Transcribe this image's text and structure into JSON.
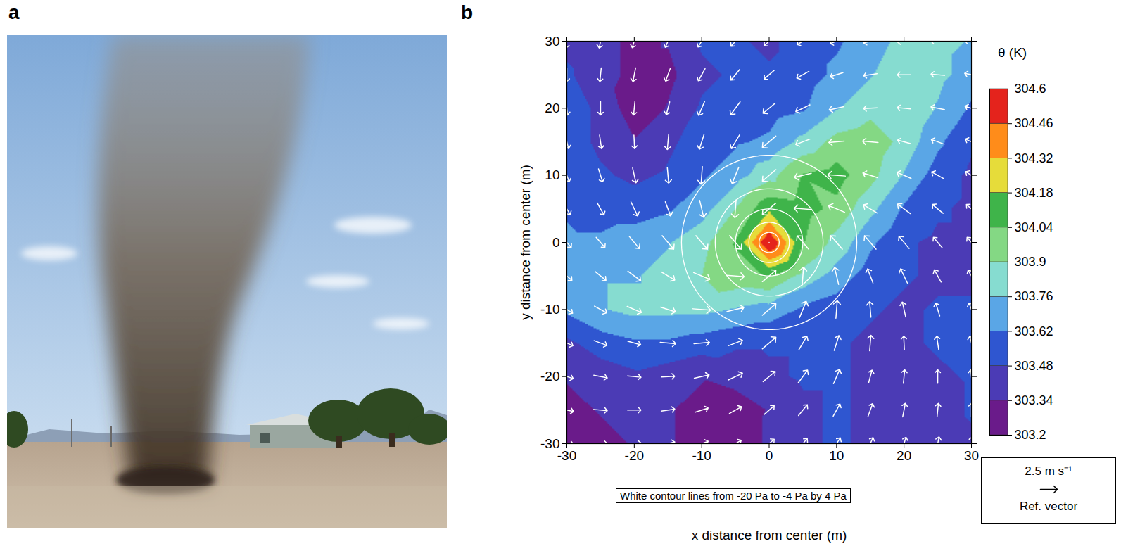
{
  "chart_data": [
    {
      "label": "a",
      "type": "photo"
    },
    {
      "label": "b",
      "type": "vector_field",
      "x_label": "x distance from center (m)",
      "y_label": "y distance from center (m)",
      "xlim": [
        -30,
        30
      ],
      "ylim": [
        -30,
        30
      ],
      "xticks": [
        -30,
        -20,
        -10,
        0,
        10,
        20,
        30
      ],
      "yticks": [
        -30,
        -20,
        -10,
        0,
        10,
        20,
        30
      ],
      "colorbar_title": "θ (K)",
      "color_ticks": [
        303.2,
        303.34,
        303.48,
        303.62,
        303.76,
        303.9,
        304.04,
        304.18,
        304.32,
        304.46,
        304.6
      ],
      "colors": [
        "#6a1b8a",
        "#4b3bb5",
        "#2f56d0",
        "#5aa6e6",
        "#86dcd0",
        "#84d884",
        "#3fb44a",
        "#e6dc3a",
        "#ff8c1a",
        "#e4231c"
      ],
      "theta": {
        "x": [
          -30,
          -25,
          -20,
          -15,
          -10,
          -5,
          0,
          5,
          10,
          15,
          20,
          25,
          30
        ],
        "y": [
          30,
          25,
          20,
          15,
          10,
          5,
          0,
          -5,
          -10,
          -15,
          -20,
          -25,
          -30
        ],
        "values": [
          [
            303.45,
            303.4,
            303.3,
            303.35,
            303.5,
            303.5,
            303.45,
            303.55,
            303.6,
            303.7,
            303.8,
            303.8,
            303.75
          ],
          [
            303.5,
            303.4,
            303.3,
            303.3,
            303.45,
            303.5,
            303.5,
            303.55,
            303.65,
            303.75,
            303.85,
            303.8,
            303.7
          ],
          [
            303.55,
            303.45,
            303.25,
            303.35,
            303.5,
            303.55,
            303.55,
            303.6,
            303.75,
            303.85,
            303.9,
            303.75,
            303.6
          ],
          [
            303.55,
            303.45,
            303.35,
            303.45,
            303.55,
            303.6,
            303.65,
            303.8,
            303.95,
            304.0,
            303.85,
            303.65,
            303.5
          ],
          [
            303.6,
            303.5,
            303.45,
            303.5,
            303.6,
            303.7,
            303.85,
            304.05,
            304.1,
            303.95,
            303.75,
            303.55,
            303.45
          ],
          [
            303.6,
            303.55,
            303.55,
            303.6,
            303.7,
            303.9,
            304.15,
            304.1,
            304.0,
            303.8,
            303.6,
            303.5,
            303.45
          ],
          [
            303.65,
            303.65,
            303.7,
            303.75,
            303.85,
            304.05,
            304.6,
            304.05,
            303.85,
            303.65,
            303.5,
            303.45,
            303.45
          ],
          [
            303.7,
            303.75,
            303.75,
            303.8,
            303.9,
            304.0,
            304.05,
            303.85,
            303.7,
            303.55,
            303.5,
            303.45,
            303.45
          ],
          [
            303.65,
            303.75,
            303.8,
            303.8,
            303.8,
            303.75,
            303.7,
            303.6,
            303.55,
            303.5,
            303.45,
            303.5,
            303.5
          ],
          [
            303.45,
            303.55,
            303.6,
            303.6,
            303.55,
            303.5,
            303.5,
            303.5,
            303.5,
            303.45,
            303.45,
            303.5,
            303.55
          ],
          [
            303.35,
            303.4,
            303.45,
            303.4,
            303.35,
            303.4,
            303.45,
            303.5,
            303.5,
            303.45,
            303.4,
            303.45,
            303.5
          ],
          [
            303.3,
            303.35,
            303.4,
            303.35,
            303.3,
            303.25,
            303.35,
            303.45,
            303.5,
            303.45,
            303.4,
            303.4,
            303.5
          ],
          [
            303.25,
            303.3,
            303.35,
            303.35,
            303.3,
            303.3,
            303.35,
            303.45,
            303.5,
            303.45,
            303.35,
            303.4,
            303.45
          ]
        ]
      },
      "wind": {
        "u": [
          [
            -0.2,
            -0.4,
            -0.6,
            -0.8,
            -1.1,
            -1.3,
            -1.5,
            -1.7,
            -1.9,
            -2.0,
            -2.0,
            -2.0,
            -2.0
          ],
          [
            0.0,
            -0.2,
            -0.4,
            -0.7,
            -1.0,
            -1.3,
            -1.5,
            -1.8,
            -1.9,
            -2.0,
            -2.0,
            -2.0,
            -2.0
          ],
          [
            0.2,
            0.0,
            -0.2,
            -0.5,
            -0.9,
            -1.4,
            -1.8,
            -2.1,
            -2.2,
            -2.0,
            -2.0,
            -2.0,
            -1.9
          ],
          [
            0.5,
            0.3,
            0.1,
            -0.2,
            -0.7,
            -1.2,
            -2.0,
            -2.1,
            -2.3,
            -2.3,
            -1.9,
            -1.9,
            -1.8
          ],
          [
            0.7,
            0.6,
            0.5,
            0.2,
            -0.2,
            -1.0,
            -2.0,
            -2.5,
            -2.6,
            -2.2,
            -2.1,
            -1.8,
            -1.7
          ],
          [
            1.0,
            1.0,
            1.0,
            0.8,
            0.6,
            -0.2,
            -2.0,
            -2.6,
            -2.4,
            -2.0,
            -1.9,
            -1.6,
            -1.5
          ],
          [
            1.3,
            1.3,
            1.5,
            1.7,
            1.7,
            1.7,
            0,
            -1.7,
            -1.7,
            -1.7,
            -1.5,
            -1.3,
            -1.3
          ],
          [
            1.5,
            1.6,
            1.9,
            2.0,
            2.4,
            2.6,
            2.0,
            0.2,
            -0.6,
            -0.8,
            -1.0,
            -1.0,
            -1.0
          ],
          [
            1.7,
            1.8,
            2.1,
            2.2,
            2.6,
            2.5,
            2.0,
            1.0,
            0.2,
            -0.2,
            -0.5,
            -0.6,
            -0.7
          ],
          [
            1.8,
            1.9,
            1.9,
            2.3,
            2.3,
            2.1,
            2.0,
            1.2,
            0.7,
            0.2,
            -0.1,
            -0.3,
            -0.5
          ],
          [
            1.9,
            2.0,
            2.0,
            2.0,
            2.2,
            2.1,
            1.8,
            1.4,
            0.9,
            0.5,
            0.2,
            0.0,
            -0.2
          ],
          [
            2.0,
            2.0,
            2.0,
            2.0,
            1.9,
            1.8,
            1.5,
            1.3,
            1.0,
            0.7,
            0.4,
            0.2,
            0.0
          ],
          [
            2.0,
            2.0,
            2.0,
            2.0,
            1.9,
            1.7,
            1.5,
            1.3,
            1.1,
            0.8,
            0.6,
            0.4,
            0.2
          ]
        ],
        "v": [
          [
            -2.0,
            -2.0,
            -1.9,
            -1.8,
            -1.7,
            -1.5,
            -1.3,
            -1.0,
            -0.7,
            -0.5,
            -0.2,
            0.0,
            0.2
          ],
          [
            -2.0,
            -2.0,
            -2.0,
            -1.9,
            -1.8,
            -1.6,
            -1.3,
            -1.0,
            -0.6,
            -0.3,
            0.0,
            0.2,
            0.4
          ],
          [
            -2.0,
            -2.0,
            -2.0,
            -1.9,
            -2.1,
            -1.9,
            -1.5,
            -1.0,
            -0.5,
            -0.1,
            0.2,
            0.4,
            0.6
          ],
          [
            -2.0,
            -2.0,
            -2.0,
            -2.3,
            -2.2,
            -2.0,
            -1.7,
            -0.8,
            -0.2,
            0.2,
            0.5,
            0.7,
            0.8
          ],
          [
            -1.9,
            -1.9,
            -2.2,
            -2.3,
            -2.6,
            -2.4,
            -1.7,
            -0.6,
            0.2,
            0.7,
            0.9,
            1.0,
            1.1
          ],
          [
            -1.7,
            -1.8,
            -2.1,
            -2.1,
            -2.5,
            -2.6,
            -1.7,
            0.2,
            1.0,
            1.2,
            1.4,
            1.3,
            1.3
          ],
          [
            -1.5,
            -1.5,
            -1.8,
            -2.0,
            -2.0,
            -2.0,
            0,
            2.0,
            2.0,
            2.0,
            1.8,
            1.5,
            1.5
          ],
          [
            -1.3,
            -1.3,
            -1.4,
            -1.2,
            -1.0,
            -0.2,
            1.7,
            2.6,
            2.5,
            2.1,
            2.1,
            1.8,
            1.7
          ],
          [
            -1.1,
            -1.0,
            -0.9,
            -0.7,
            -0.2,
            0.6,
            1.7,
            2.4,
            2.6,
            2.3,
            2.2,
            1.9,
            1.9
          ],
          [
            -0.8,
            -0.7,
            -0.5,
            -0.2,
            0.2,
            0.8,
            1.7,
            2.0,
            2.2,
            2.3,
            2.0,
            2.0,
            2.0
          ],
          [
            -0.6,
            -0.4,
            -0.2,
            0.1,
            0.5,
            1.0,
            1.5,
            1.9,
            2.1,
            1.9,
            2.0,
            2.0,
            2.0
          ],
          [
            -0.4,
            -0.2,
            0.0,
            0.3,
            0.6,
            1.0,
            1.3,
            1.6,
            1.8,
            1.9,
            2.0,
            2.0,
            2.0
          ],
          [
            -0.2,
            0.0,
            0.2,
            0.5,
            0.7,
            1.0,
            1.3,
            1.5,
            1.7,
            1.8,
            1.9,
            2.0,
            2.0
          ]
        ]
      },
      "pressure_contours": {
        "caption": "White contour lines from -20 Pa to -4 Pa by 4 Pa",
        "levels": [
          -20,
          -16,
          -12,
          -8,
          -4
        ],
        "radius": [
          1.5,
          3,
          5,
          8,
          13
        ]
      },
      "reference_vector": {
        "value": 2.5,
        "label": "2.5 m s⁻¹",
        "caption": "Ref. vector"
      }
    }
  ]
}
